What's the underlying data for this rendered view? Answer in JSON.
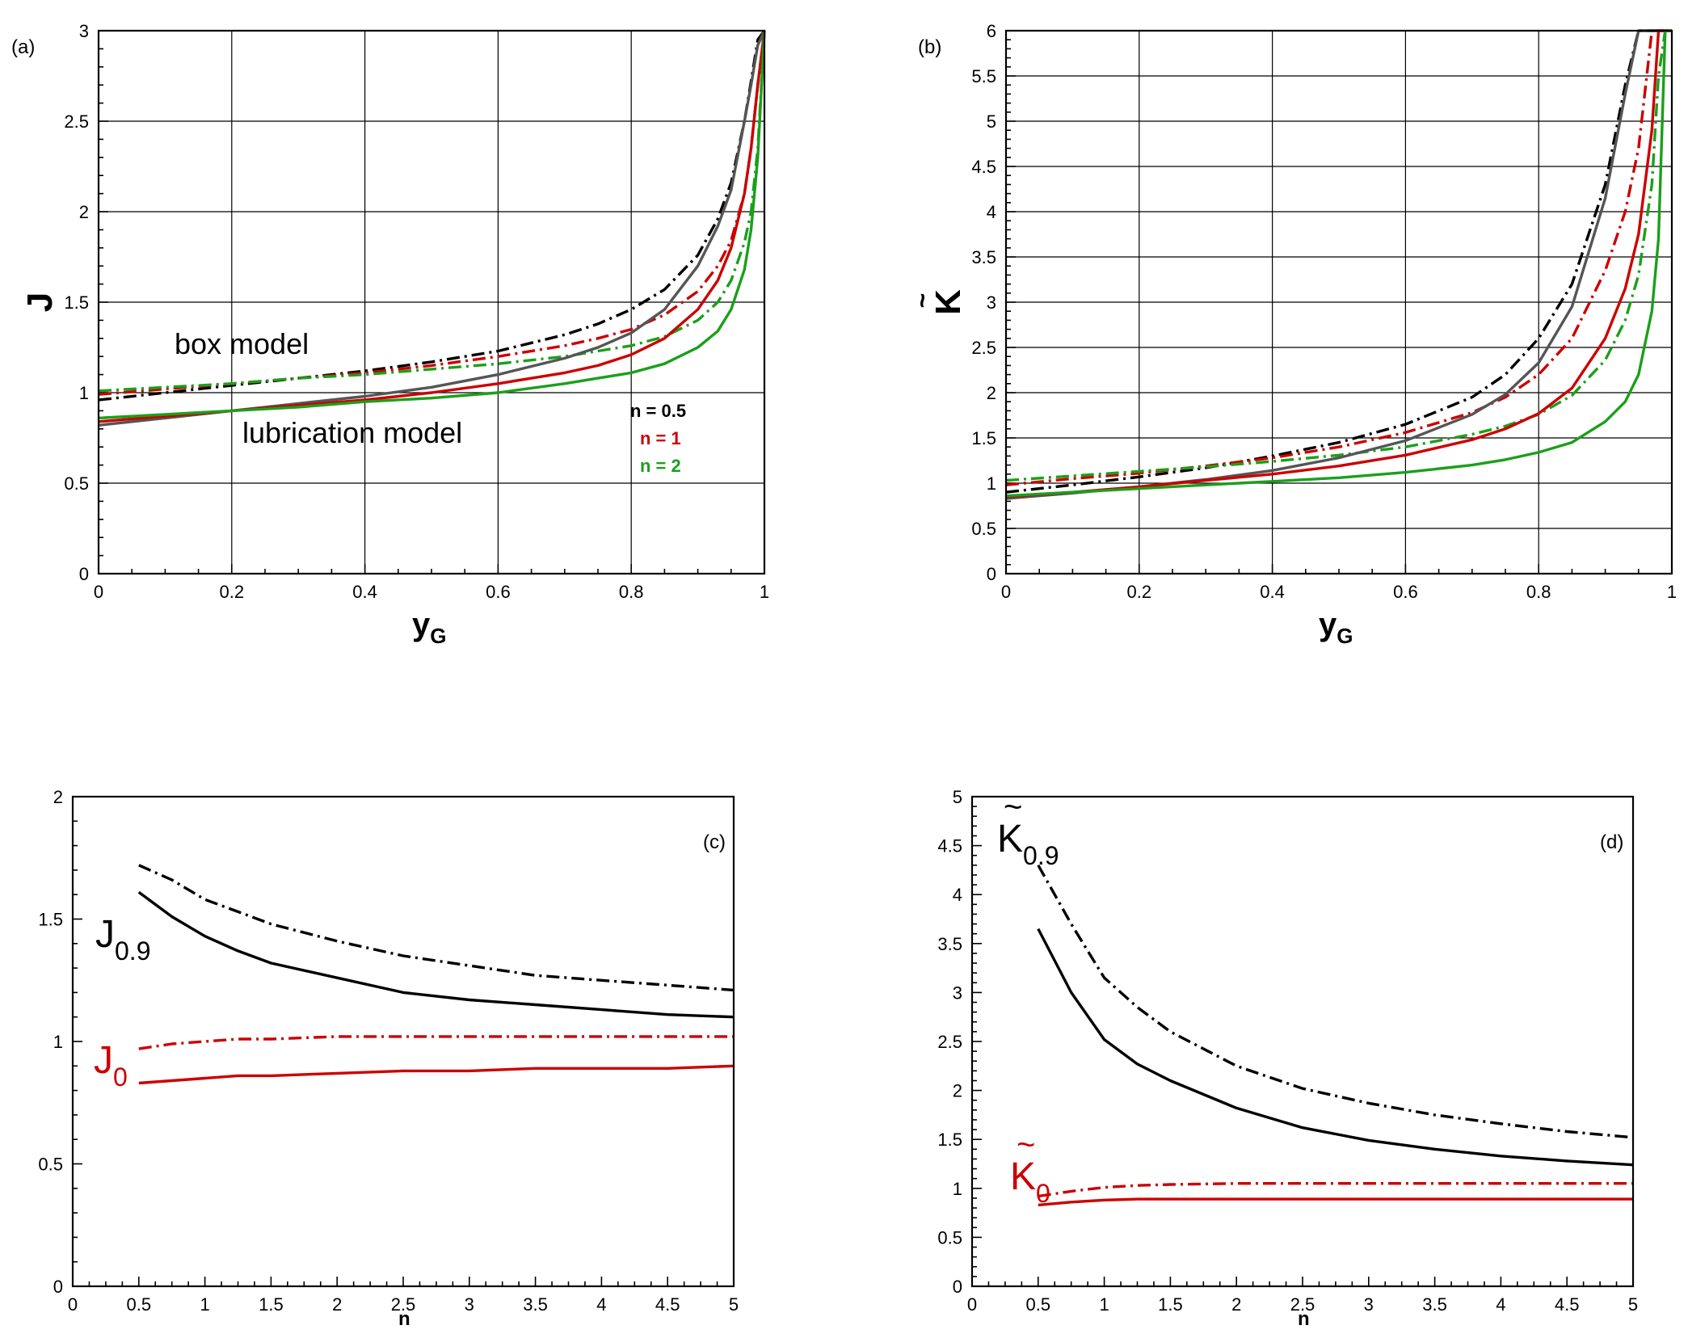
{
  "colors": {
    "black": "#000000",
    "red": "#cc0000",
    "green": "#1aa01a",
    "gray": "#555555"
  },
  "chart_data": [
    {
      "id": "a",
      "type": "line",
      "panel_label": "(a)",
      "xlabel": "y",
      "xlabel_sub": "G",
      "ylabel": "J",
      "xlim": [
        0,
        1
      ],
      "ylim": [
        0,
        3
      ],
      "grid": true,
      "xticks": [
        "0",
        "0.2",
        "0.4",
        "0.6",
        "0.8",
        "1"
      ],
      "yticks": [
        "0",
        "0.5",
        "1",
        "1.5",
        "2",
        "2.5",
        "3"
      ],
      "x": [
        0,
        0.1,
        0.2,
        0.3,
        0.4,
        0.5,
        0.6,
        0.7,
        0.75,
        0.8,
        0.85,
        0.9,
        0.93,
        0.95,
        0.97,
        0.98,
        0.99,
        1.0
      ],
      "annotations": [
        "box model",
        "lubrication model"
      ],
      "legend": [
        {
          "label": "n = 0.5",
          "color": "#000000"
        },
        {
          "label": "n = 1",
          "color": "#cc0000"
        },
        {
          "label": "n = 2",
          "color": "#1aa01a"
        }
      ],
      "series": [
        {
          "name": "box model n = 0.5",
          "color": "#000000",
          "style": "dashdot",
          "values": [
            0.96,
            1.0,
            1.04,
            1.08,
            1.12,
            1.17,
            1.23,
            1.32,
            1.38,
            1.46,
            1.57,
            1.76,
            1.96,
            2.16,
            2.5,
            2.72,
            2.95,
            3.0
          ]
        },
        {
          "name": "box model n = 1",
          "color": "#cc0000",
          "style": "dashdot",
          "values": [
            0.99,
            1.02,
            1.05,
            1.08,
            1.11,
            1.15,
            1.2,
            1.26,
            1.3,
            1.35,
            1.43,
            1.56,
            1.7,
            1.84,
            2.1,
            2.35,
            2.7,
            3.0
          ]
        },
        {
          "name": "box model n = 2",
          "color": "#1aa01a",
          "style": "dashdot",
          "values": [
            1.01,
            1.03,
            1.05,
            1.08,
            1.1,
            1.13,
            1.16,
            1.2,
            1.23,
            1.26,
            1.31,
            1.4,
            1.5,
            1.62,
            1.83,
            2.0,
            2.35,
            3.0
          ]
        },
        {
          "name": "lubrication model n = 0.5",
          "color": "#555555",
          "style": "solid",
          "values": [
            0.82,
            0.86,
            0.9,
            0.94,
            0.98,
            1.03,
            1.1,
            1.19,
            1.25,
            1.33,
            1.46,
            1.7,
            1.92,
            2.12,
            2.5,
            2.7,
            2.92,
            3.0
          ]
        },
        {
          "name": "lubrication model n = 1",
          "color": "#cc0000",
          "style": "solid",
          "values": [
            0.84,
            0.87,
            0.9,
            0.93,
            0.96,
            1.0,
            1.05,
            1.11,
            1.15,
            1.21,
            1.3,
            1.46,
            1.62,
            1.8,
            2.1,
            2.35,
            2.7,
            3.0
          ]
        },
        {
          "name": "lubrication model n = 2",
          "color": "#1aa01a",
          "style": "solid",
          "values": [
            0.86,
            0.88,
            0.9,
            0.92,
            0.95,
            0.97,
            1.0,
            1.05,
            1.08,
            1.11,
            1.16,
            1.25,
            1.34,
            1.46,
            1.68,
            1.9,
            2.3,
            3.0
          ]
        }
      ]
    },
    {
      "id": "b",
      "type": "line",
      "panel_label": "(b)",
      "xlabel": "y",
      "xlabel_sub": "G",
      "ylabel": "K",
      "ylabel_accent": "~",
      "xlim": [
        0,
        1
      ],
      "ylim": [
        0,
        6
      ],
      "grid": true,
      "xticks": [
        "0",
        "0.2",
        "0.4",
        "0.6",
        "0.8",
        "1"
      ],
      "yticks": [
        "0",
        "0.5",
        "1",
        "1.5",
        "2",
        "2.5",
        "3",
        "3.5",
        "4",
        "4.5",
        "5",
        "5.5",
        "6"
      ],
      "x": [
        0,
        0.1,
        0.2,
        0.3,
        0.4,
        0.5,
        0.6,
        0.7,
        0.75,
        0.8,
        0.85,
        0.9,
        0.93,
        0.95,
        0.97,
        0.98,
        0.99,
        1.0
      ],
      "series": [
        {
          "name": "box model n = 0.5",
          "color": "#000000",
          "style": "dashdot",
          "values": [
            0.9,
            0.98,
            1.07,
            1.17,
            1.3,
            1.45,
            1.65,
            1.95,
            2.2,
            2.6,
            3.2,
            4.3,
            5.4,
            6.0,
            6.0,
            6.0,
            6.0,
            6.0
          ]
        },
        {
          "name": "box model n = 1",
          "color": "#cc0000",
          "style": "dashdot",
          "values": [
            0.98,
            1.05,
            1.11,
            1.19,
            1.28,
            1.4,
            1.56,
            1.78,
            1.95,
            2.2,
            2.6,
            3.35,
            4.0,
            4.7,
            6.0,
            6.0,
            6.0,
            6.0
          ]
        },
        {
          "name": "box model n = 2",
          "color": "#1aa01a",
          "style": "dashdot",
          "values": [
            1.03,
            1.08,
            1.13,
            1.18,
            1.24,
            1.31,
            1.4,
            1.54,
            1.63,
            1.76,
            1.97,
            2.36,
            2.8,
            3.3,
            4.3,
            5.5,
            6.0,
            6.0
          ]
        },
        {
          "name": "lubrication model n = 0.5",
          "color": "#555555",
          "style": "solid",
          "values": [
            0.83,
            0.89,
            0.96,
            1.04,
            1.14,
            1.28,
            1.47,
            1.76,
            1.98,
            2.33,
            2.95,
            4.15,
            5.3,
            6.0,
            6.0,
            6.0,
            6.0,
            6.0
          ]
        },
        {
          "name": "lubrication model n = 1",
          "color": "#cc0000",
          "style": "solid",
          "values": [
            0.85,
            0.9,
            0.96,
            1.03,
            1.1,
            1.19,
            1.31,
            1.48,
            1.6,
            1.77,
            2.05,
            2.6,
            3.15,
            3.75,
            4.9,
            6.0,
            6.0,
            6.0
          ]
        },
        {
          "name": "lubrication model n = 2",
          "color": "#1aa01a",
          "style": "solid",
          "values": [
            0.86,
            0.9,
            0.94,
            0.98,
            1.02,
            1.06,
            1.12,
            1.2,
            1.26,
            1.34,
            1.45,
            1.68,
            1.9,
            2.2,
            2.9,
            3.7,
            6.0,
            6.0
          ]
        }
      ]
    },
    {
      "id": "c",
      "type": "line",
      "panel_label": "(c)",
      "xlabel": "n",
      "ylabel": "",
      "xlim": [
        0,
        5
      ],
      "ylim": [
        0,
        2
      ],
      "grid": false,
      "xticks": [
        "0",
        "0.5",
        "1",
        "1.5",
        "2",
        "2.5",
        "3",
        "3.5",
        "4",
        "4.5",
        "5"
      ],
      "yticks": [
        "0",
        "0.5",
        "1",
        "1.5",
        "2"
      ],
      "x": [
        0.5,
        0.75,
        1,
        1.25,
        1.5,
        2,
        2.5,
        3,
        3.5,
        4,
        4.5,
        5
      ],
      "labels": [
        {
          "text": "J",
          "sub": "0.9",
          "color": "#000000"
        },
        {
          "text": "J",
          "sub": "0",
          "color": "#cc0000"
        }
      ],
      "series": [
        {
          "name": "J0.9 box model",
          "color": "#000000",
          "style": "dashdot",
          "values": [
            1.72,
            1.66,
            1.58,
            1.53,
            1.48,
            1.41,
            1.35,
            1.31,
            1.27,
            1.25,
            1.23,
            1.21
          ]
        },
        {
          "name": "J0.9 lubrication model",
          "color": "#000000",
          "style": "solid",
          "values": [
            1.61,
            1.51,
            1.43,
            1.37,
            1.32,
            1.26,
            1.2,
            1.17,
            1.15,
            1.13,
            1.11,
            1.1
          ]
        },
        {
          "name": "J0 box model",
          "color": "#cc0000",
          "style": "dashdot",
          "values": [
            0.97,
            0.99,
            1.0,
            1.01,
            1.01,
            1.02,
            1.02,
            1.02,
            1.02,
            1.02,
            1.02,
            1.02
          ]
        },
        {
          "name": "J0 lubrication model",
          "color": "#cc0000",
          "style": "solid",
          "values": [
            0.83,
            0.84,
            0.85,
            0.86,
            0.86,
            0.87,
            0.88,
            0.88,
            0.89,
            0.89,
            0.89,
            0.9
          ]
        }
      ]
    },
    {
      "id": "d",
      "type": "line",
      "panel_label": "(d)",
      "xlabel": "n",
      "ylabel": "",
      "xlim": [
        0,
        5
      ],
      "ylim": [
        0,
        5
      ],
      "grid": false,
      "xticks": [
        "0",
        "0.5",
        "1",
        "1.5",
        "2",
        "2.5",
        "3",
        "3.5",
        "4",
        "4.5",
        "5"
      ],
      "yticks": [
        "0",
        "0.5",
        "1",
        "1.5",
        "2",
        "2.5",
        "3",
        "3.5",
        "4",
        "4.5",
        "5"
      ],
      "x": [
        0.5,
        0.75,
        1,
        1.25,
        1.5,
        2,
        2.5,
        3,
        3.5,
        4,
        4.5,
        5
      ],
      "labels": [
        {
          "text": "K",
          "accent": "~",
          "sub": "0.9",
          "color": "#000000"
        },
        {
          "text": "K",
          "accent": "~",
          "sub": "0",
          "color": "#cc0000"
        }
      ],
      "series": [
        {
          "name": "K0.9 box model",
          "color": "#000000",
          "style": "dashdot",
          "values": [
            4.3,
            3.7,
            3.15,
            2.85,
            2.6,
            2.25,
            2.02,
            1.87,
            1.75,
            1.66,
            1.58,
            1.52
          ]
        },
        {
          "name": "K0.9 lubrication model",
          "color": "#000000",
          "style": "solid",
          "values": [
            3.65,
            3.0,
            2.52,
            2.27,
            2.1,
            1.82,
            1.62,
            1.49,
            1.4,
            1.33,
            1.28,
            1.24
          ]
        },
        {
          "name": "K0 box model",
          "color": "#cc0000",
          "style": "dashdot",
          "values": [
            0.92,
            0.97,
            1.01,
            1.03,
            1.04,
            1.05,
            1.05,
            1.05,
            1.05,
            1.05,
            1.05,
            1.05
          ]
        },
        {
          "name": "K0 lubrication model",
          "color": "#cc0000",
          "style": "solid",
          "values": [
            0.83,
            0.86,
            0.88,
            0.89,
            0.89,
            0.89,
            0.89,
            0.89,
            0.89,
            0.89,
            0.89,
            0.89
          ]
        }
      ]
    }
  ]
}
